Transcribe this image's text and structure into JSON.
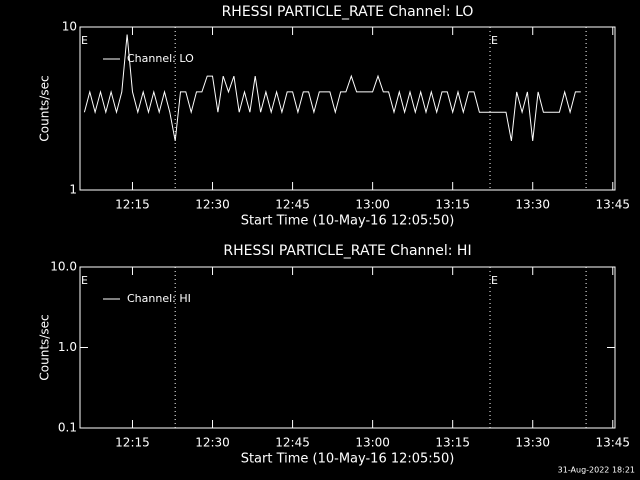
{
  "chart_data": [
    {
      "type": "line",
      "title": "RHESSI PARTICLE_RATE Channel: LO",
      "x_label": "Start Time (10-May-16 12:05:50)",
      "y_label": "Counts/sec",
      "log_y": true,
      "ylim": [
        1,
        10
      ],
      "yticks": [
        1,
        10
      ],
      "xlim": [
        "12:05:10",
        "13:45:25"
      ],
      "xticks": [
        "12:15",
        "12:30",
        "12:45",
        "13:00",
        "13:15",
        "13:30",
        "13:45"
      ],
      "legend": "top-left",
      "vlines": [
        "12:23",
        "13:22",
        "13:40"
      ],
      "annotations": [
        {
          "text": "E",
          "x": "12:05:10"
        },
        {
          "text": "E",
          "x": "13:22"
        }
      ],
      "x": [
        "12:06",
        "12:07",
        "12:08",
        "12:09",
        "12:10",
        "12:11",
        "12:12",
        "12:13",
        "12:14",
        "12:15",
        "12:16",
        "12:17",
        "12:18",
        "12:19",
        "12:20",
        "12:21",
        "12:22",
        "12:23",
        "12:24",
        "12:25",
        "12:26",
        "12:27",
        "12:28",
        "12:29",
        "12:30",
        "12:31",
        "12:32",
        "12:33",
        "12:34",
        "12:35",
        "12:36",
        "12:37",
        "12:38",
        "12:39",
        "12:40",
        "12:41",
        "12:42",
        "12:43",
        "12:44",
        "12:45",
        "12:46",
        "12:47",
        "12:48",
        "12:49",
        "12:50",
        "12:51",
        "12:52",
        "12:53",
        "12:54",
        "12:55",
        "12:56",
        "12:57",
        "12:58",
        "12:59",
        "13:00",
        "13:01",
        "13:02",
        "13:03",
        "13:04",
        "13:05",
        "13:06",
        "13:07",
        "13:08",
        "13:09",
        "13:10",
        "13:11",
        "13:12",
        "13:13",
        "13:14",
        "13:15",
        "13:16",
        "13:17",
        "13:18",
        "13:19",
        "13:20",
        "13:21",
        "13:22",
        "13:23",
        "13:24",
        "13:25",
        "13:26",
        "13:27",
        "13:28",
        "13:29",
        "13:30",
        "13:31",
        "13:32",
        "13:33",
        "13:34",
        "13:35",
        "13:36",
        "13:37",
        "13:38",
        "13:39"
      ],
      "series": [
        {
          "name": "Channel: LO",
          "color": "#ffffff",
          "values": [
            3,
            4,
            3,
            4,
            3,
            4,
            3,
            4,
            9,
            4,
            3,
            4,
            3,
            4,
            3,
            4,
            3,
            2,
            4,
            4,
            3,
            4,
            4,
            5,
            5,
            3,
            5,
            4,
            5,
            3,
            4,
            3,
            5,
            3,
            4,
            3,
            4,
            3,
            4,
            4,
            3,
            4,
            4,
            3,
            4,
            4,
            4,
            3,
            4,
            4,
            5,
            4,
            4,
            4,
            4,
            5,
            4,
            4,
            3,
            4,
            3,
            4,
            3,
            4,
            3,
            4,
            3,
            4,
            4,
            3,
            4,
            3,
            4,
            4,
            3,
            3,
            3,
            3,
            3,
            3,
            2,
            4,
            3,
            4,
            2,
            4,
            3,
            3,
            3,
            3,
            4,
            3,
            4,
            4
          ]
        }
      ]
    },
    {
      "type": "line",
      "title": "RHESSI PARTICLE_RATE Channel: HI",
      "x_label": "Start Time (10-May-16 12:05:50)",
      "y_label": "Counts/sec",
      "log_y": true,
      "ylim": [
        0.1,
        10
      ],
      "yticks": [
        0.1,
        {
          "value": 1,
          "label": "1.0"
        },
        {
          "value": 10,
          "label": "10.0"
        }
      ],
      "xlim": [
        "12:05:10",
        "13:45:25"
      ],
      "xticks": [
        "12:15",
        "12:30",
        "12:45",
        "13:00",
        "13:15",
        "13:30",
        "13:45"
      ],
      "legend": "top-left",
      "vlines": [
        "12:23",
        "13:22",
        "13:40"
      ],
      "annotations": [
        {
          "text": "E",
          "x": "12:05:10"
        },
        {
          "text": "E",
          "x": "13:22"
        }
      ],
      "x": [],
      "series": [
        {
          "name": "Channel: HI",
          "color": "#ffffff",
          "values": []
        }
      ]
    }
  ],
  "footer": "31-Aug-2022 18:21"
}
